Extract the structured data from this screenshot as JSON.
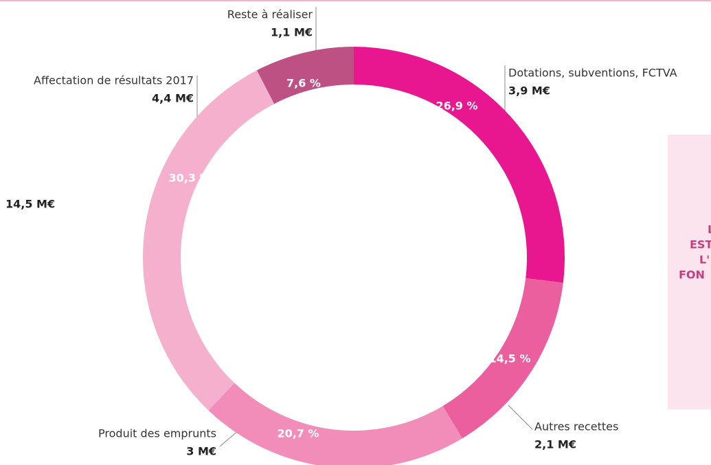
{
  "chart_data": {
    "type": "donut",
    "total_label": "14,5 M€",
    "categories": [
      "Dotations, subventions, FCTVA",
      "Autres recettes",
      "Produit des emprunts",
      "Affectation de résultats 2017",
      "Reste à réaliser"
    ],
    "values": [
      26.9,
      14.5,
      20.7,
      30.3,
      7.6
    ],
    "value_labels": [
      "26,9 %",
      "14,5 %",
      "20,7 %",
      "30,3 %",
      "7,6 %"
    ],
    "amounts": [
      "3,9 M€",
      "2,1 M€",
      "3 M€",
      "4,4 M€",
      "1,1 M€"
    ],
    "colors": [
      "#e8168f",
      "#ec5f9f",
      "#f28cb8",
      "#f5b0cd",
      "#bd5184"
    ],
    "side_box_lines": [
      "LE I",
      "EST",
      "L'",
      "FON"
    ]
  }
}
